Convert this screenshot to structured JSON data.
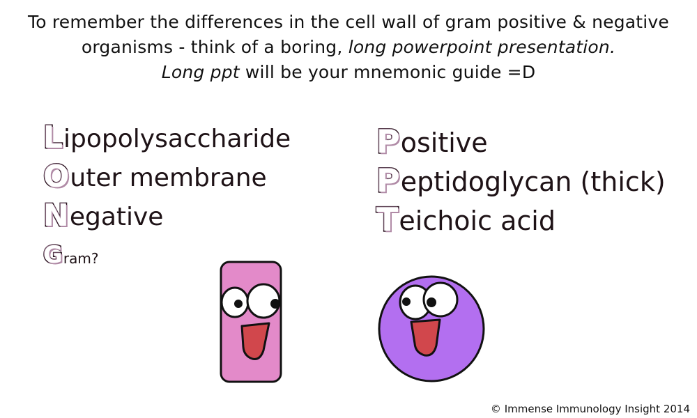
{
  "intro": {
    "line1": "To remember the differences in the cell wall of gram positive & negative",
    "line2_plain": "organisms - think of a boring, ",
    "line2_italic": "long powerpoint presentation.",
    "line3_italic": "Long ppt",
    "line3_plain": " will be your mnemonic guide =D"
  },
  "long_mnemonic": [
    {
      "letter": "L",
      "rest": "ipopolysaccharide"
    },
    {
      "letter": "O",
      "rest": "uter membrane"
    },
    {
      "letter": "N",
      "rest": "egative"
    },
    {
      "letter": "G",
      "rest": "ram?"
    }
  ],
  "ppt_mnemonic": [
    {
      "letter": "P",
      "rest": "ositive"
    },
    {
      "letter": "P",
      "rest": "eptidoglycan (thick)"
    },
    {
      "letter": "T",
      "rest": "eichoic acid"
    }
  ],
  "characters": {
    "rod_color": "#e38ac9",
    "coccus_color": "#b36ff0",
    "mouth_color": "#d1474c"
  },
  "copyright": "© Immense Immunology Insight 2014"
}
